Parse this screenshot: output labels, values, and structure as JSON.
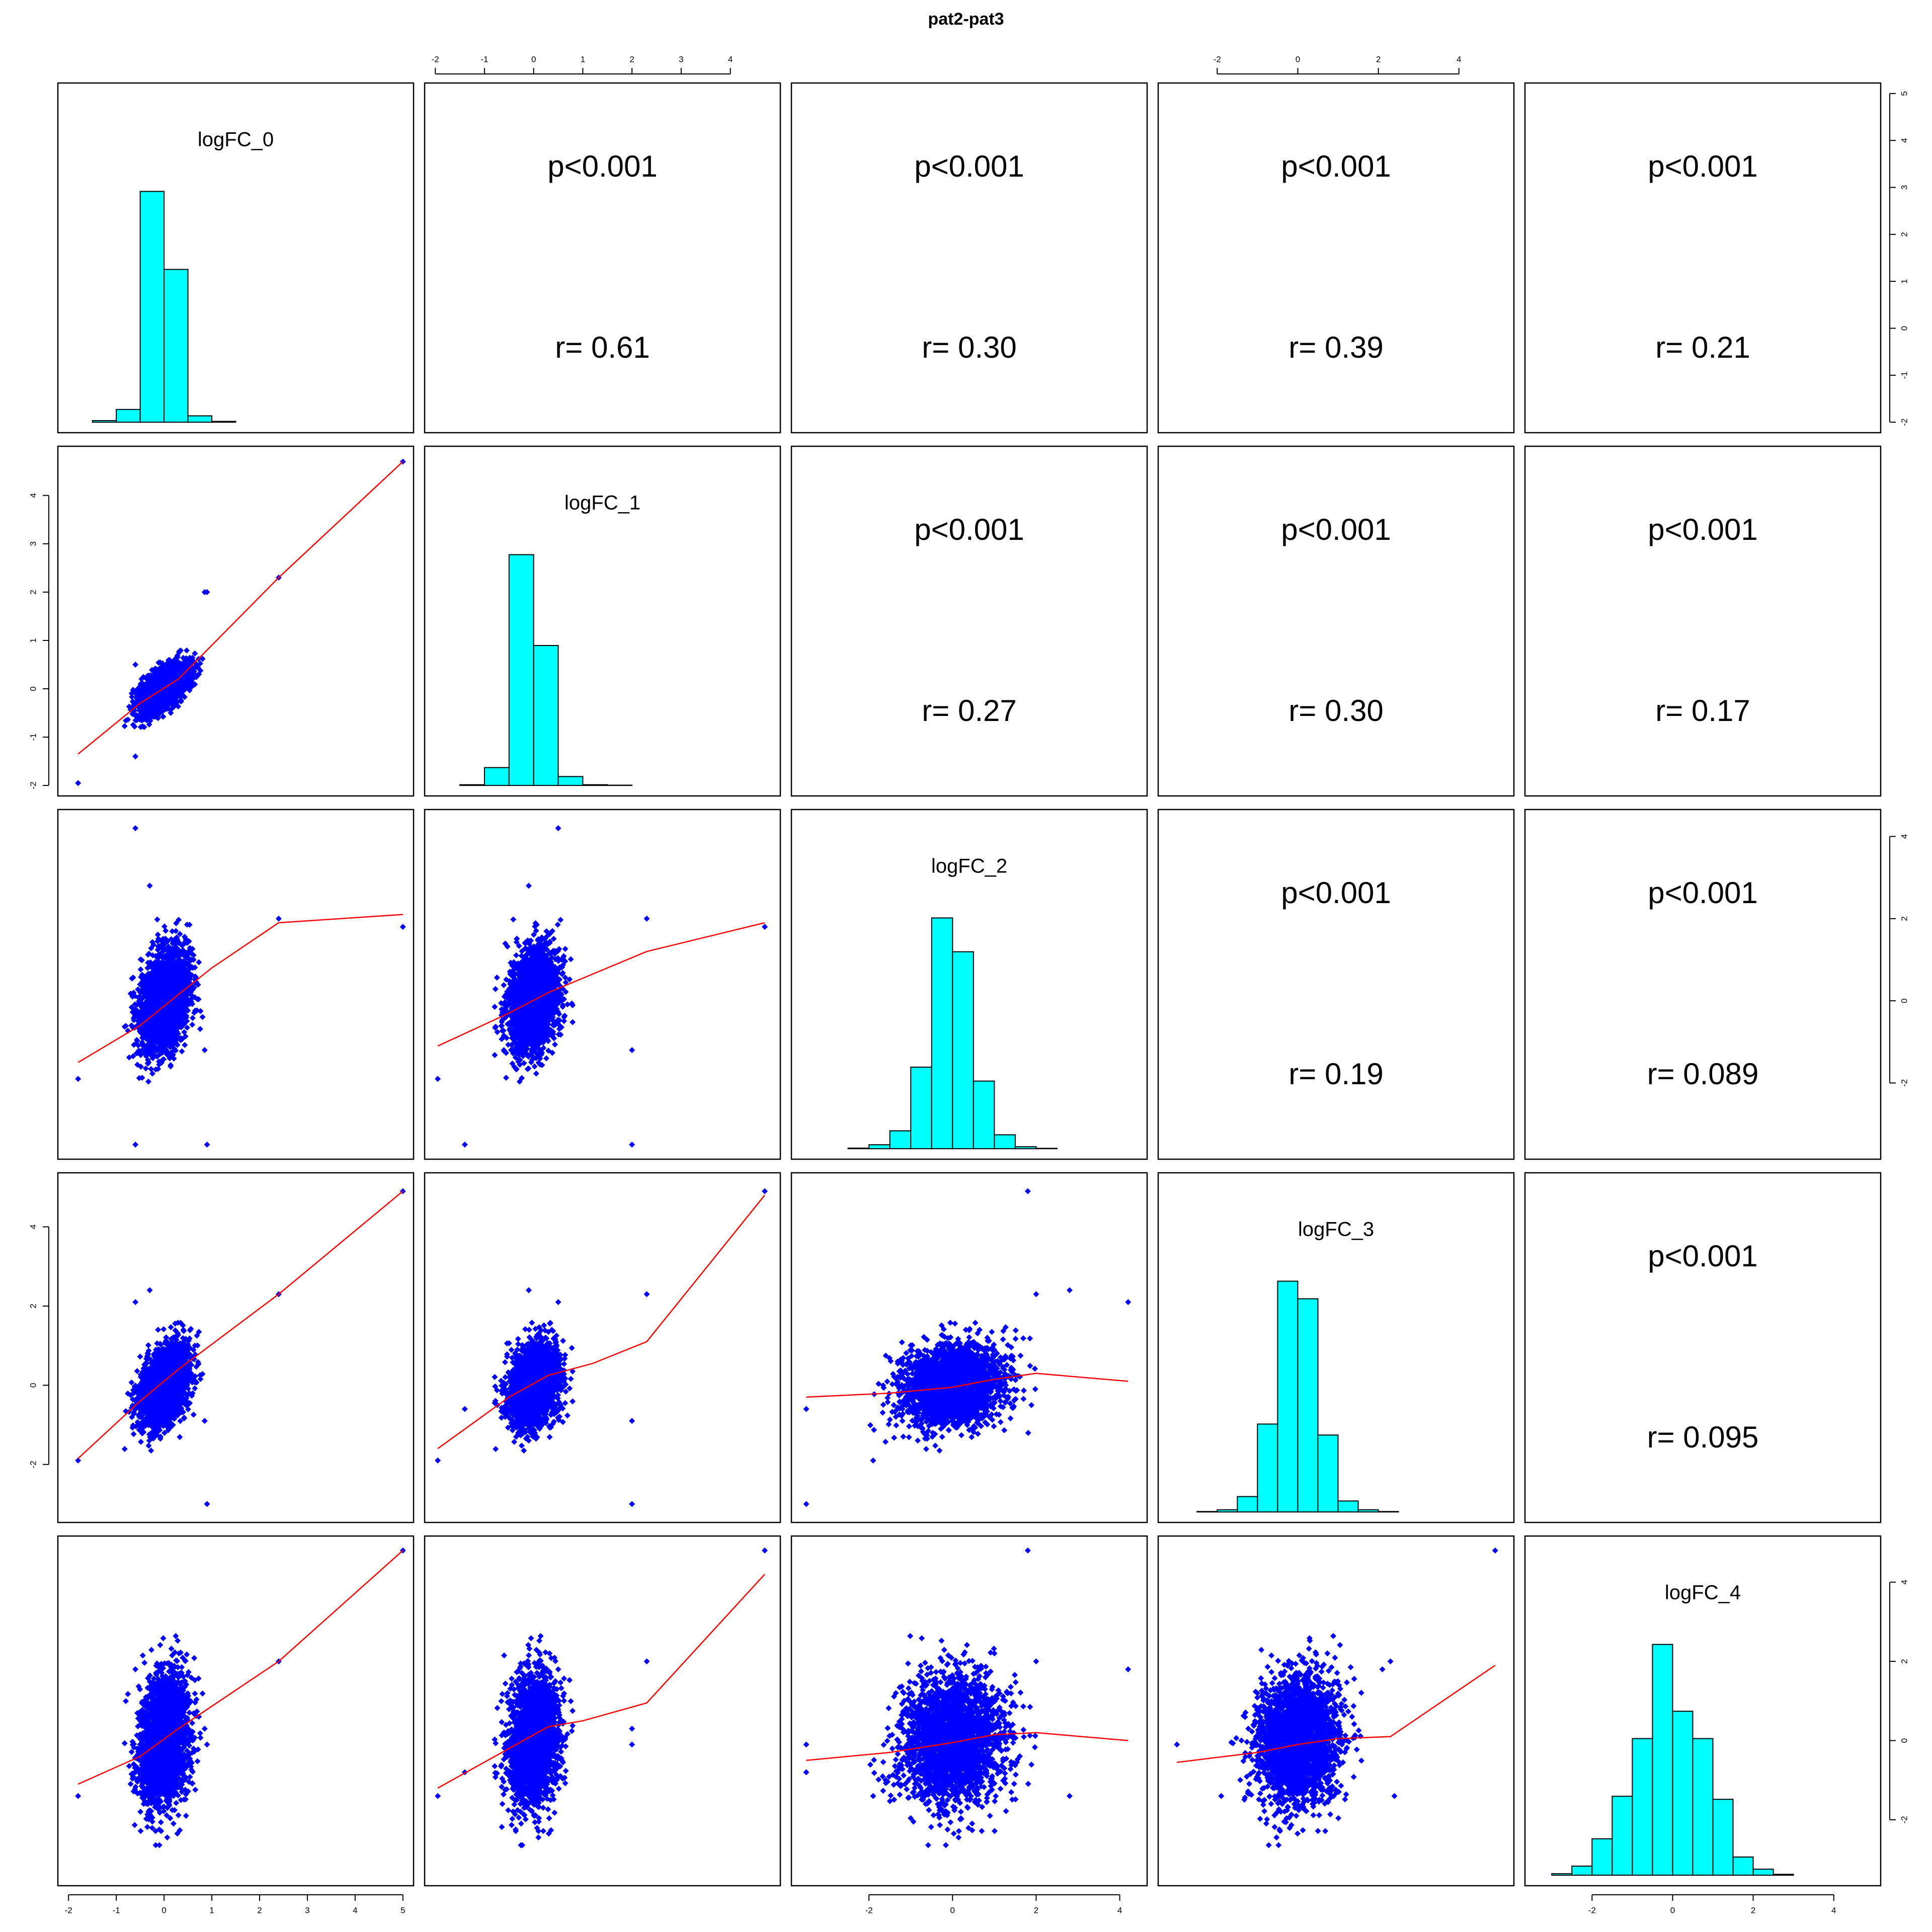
{
  "chart_data": {
    "type": "scatter",
    "kind": "pairs-matrix",
    "title": "pat2-pat3",
    "variables": [
      "logFC_0",
      "logFC_1",
      "logFC_2",
      "logFC_3",
      "logFC_4"
    ],
    "axes": [
      {
        "min": -2,
        "max": 5,
        "ticks": [
          -2,
          -1,
          0,
          1,
          2,
          3,
          4,
          5
        ],
        "sd": 0.25,
        "sample_min": -1.8,
        "sample_max": 5.0
      },
      {
        "min": -2,
        "max": 4.8,
        "ticks": [
          -2,
          -1,
          0,
          1,
          2,
          3,
          4
        ],
        "sd": 0.24,
        "sample_min": -1.95,
        "sample_max": 4.7
      },
      {
        "min": -3.6,
        "max": 4.4,
        "ticks": [
          -2,
          0,
          2,
          4
        ],
        "sd": 0.6,
        "sample_min": -3.5,
        "sample_max": 4.2
      },
      {
        "min": -3.2,
        "max": 5.1,
        "ticks": [
          -2,
          0,
          2,
          4
        ],
        "sd": 0.5,
        "sample_min": -3.0,
        "sample_max": 4.9
      },
      {
        "min": -3.4,
        "max": 4.9,
        "ticks": [
          -2,
          0,
          2,
          4
        ],
        "sd": 0.8,
        "sample_min": -3.0,
        "sample_max": 4.8
      }
    ],
    "correlations": [
      {
        "row": 0,
        "col": 1,
        "p": "p<0.001",
        "r": "r= 0.61"
      },
      {
        "row": 0,
        "col": 2,
        "p": "p<0.001",
        "r": "r= 0.30"
      },
      {
        "row": 0,
        "col": 3,
        "p": "p<0.001",
        "r": "r= 0.39"
      },
      {
        "row": 0,
        "col": 4,
        "p": "p<0.001",
        "r": "r= 0.21"
      },
      {
        "row": 1,
        "col": 2,
        "p": "p<0.001",
        "r": "r= 0.27"
      },
      {
        "row": 1,
        "col": 3,
        "p": "p<0.001",
        "r": "r= 0.30"
      },
      {
        "row": 1,
        "col": 4,
        "p": "p<0.001",
        "r": "r= 0.17"
      },
      {
        "row": 2,
        "col": 3,
        "p": "p<0.001",
        "r": "r= 0.19"
      },
      {
        "row": 2,
        "col": 4,
        "p": "p<0.001",
        "r": "r= 0.089"
      },
      {
        "row": 3,
        "col": 4,
        "p": "p<0.001",
        "r": "r= 0.095"
      }
    ],
    "histograms": [
      {
        "var": 0,
        "bin_edges": [
          -1.5,
          -1.0,
          -0.5,
          0,
          0.5,
          1.0,
          1.5
        ],
        "density": [
          0.01,
          0.08,
          1.45,
          0.96,
          0.04,
          0.005
        ]
      },
      {
        "var": 1,
        "bin_edges": [
          -1.5,
          -1.0,
          -0.5,
          0,
          0.5,
          1.0,
          1.5,
          2.0
        ],
        "density": [
          0.005,
          0.12,
          1.55,
          0.94,
          0.06,
          0.005,
          0.002
        ]
      },
      {
        "var": 2,
        "bin_edges": [
          -2.5,
          -2.0,
          -1.5,
          -1.0,
          -0.5,
          0,
          0.5,
          1.0,
          1.5,
          2.0,
          2.5
        ],
        "density": [
          0.003,
          0.02,
          0.09,
          0.41,
          1.16,
          0.99,
          0.34,
          0.07,
          0.01,
          0.002
        ]
      },
      {
        "var": 3,
        "bin_edges": [
          -2.5,
          -2.0,
          -1.5,
          -1.0,
          -0.5,
          0,
          0.5,
          1.0,
          1.5,
          2.0,
          2.5
        ],
        "density": [
          0.002,
          0.01,
          0.07,
          0.4,
          1.05,
          0.97,
          0.35,
          0.05,
          0.01,
          0.002
        ]
      },
      {
        "var": 4,
        "bin_edges": [
          -3.0,
          -2.5,
          -2.0,
          -1.5,
          -1.0,
          -0.5,
          0,
          0.5,
          1.0,
          1.5,
          2.0,
          2.5,
          3.0
        ],
        "density": [
          0.005,
          0.03,
          0.12,
          0.26,
          0.45,
          0.76,
          0.54,
          0.45,
          0.25,
          0.06,
          0.02,
          0.003
        ]
      }
    ],
    "outliers": [
      [
        5.0,
        4.7,
        1.8,
        4.9,
        4.8
      ],
      [
        2.4,
        2.3,
        2.0,
        2.3,
        2.0
      ],
      [
        0.85,
        2.0,
        -1.2,
        -0.9,
        0.3
      ],
      [
        -0.6,
        0.5,
        4.2,
        2.1,
        1.8
      ],
      [
        -0.3,
        -0.1,
        2.8,
        2.4,
        -1.4
      ],
      [
        -0.6,
        -1.4,
        -3.5,
        -0.6,
        -0.8
      ],
      [
        0.9,
        2.0,
        -3.5,
        -3.0,
        -0.1
      ],
      [
        -1.8,
        -1.95,
        -1.9,
        -1.9,
        -1.4
      ]
    ],
    "smoother": {
      "color": "#FF0000",
      "curves": [
        {
          "row": 1,
          "col": 0,
          "x": [
            -1.8,
            -0.5,
            0.3,
            2.4,
            5.0
          ],
          "y": [
            -1.35,
            -0.3,
            0.2,
            2.3,
            4.7
          ]
        },
        {
          "row": 2,
          "col": 0,
          "x": [
            -1.8,
            -0.5,
            0.3,
            1.0,
            2.4,
            5.0
          ],
          "y": [
            -1.5,
            -0.6,
            0.15,
            0.8,
            1.9,
            2.1
          ]
        },
        {
          "row": 2,
          "col": 1,
          "x": [
            -1.95,
            -0.5,
            0.3,
            2.3,
            4.7
          ],
          "y": [
            -1.1,
            -0.3,
            0.2,
            1.2,
            1.9
          ]
        },
        {
          "row": 3,
          "col": 0,
          "x": [
            -1.8,
            -0.5,
            0.3,
            2.4,
            5.0
          ],
          "y": [
            -1.85,
            -0.4,
            0.4,
            2.3,
            4.9
          ]
        },
        {
          "row": 3,
          "col": 1,
          "x": [
            -1.95,
            -0.5,
            0.3,
            1.2,
            2.3,
            4.7
          ],
          "y": [
            -1.6,
            -0.3,
            0.25,
            0.55,
            1.1,
            4.8
          ]
        },
        {
          "row": 3,
          "col": 2,
          "x": [
            -3.5,
            -1.5,
            0,
            1.0,
            2.0,
            4.2
          ],
          "y": [
            -0.3,
            -0.2,
            -0.05,
            0.15,
            0.3,
            0.1
          ]
        },
        {
          "row": 4,
          "col": 0,
          "x": [
            -1.8,
            -0.5,
            0.3,
            2.4,
            5.0
          ],
          "y": [
            -1.1,
            -0.4,
            0.3,
            2.0,
            4.8
          ]
        },
        {
          "row": 4,
          "col": 1,
          "x": [
            -1.95,
            -0.5,
            0.3,
            1.0,
            2.3,
            4.7
          ],
          "y": [
            -1.2,
            -0.2,
            0.35,
            0.5,
            0.95,
            4.2
          ]
        },
        {
          "row": 4,
          "col": 2,
          "x": [
            -3.5,
            -1.5,
            0,
            1.0,
            2.0,
            4.2
          ],
          "y": [
            -0.5,
            -0.3,
            -0.05,
            0.15,
            0.2,
            0.0
          ]
        },
        {
          "row": 4,
          "col": 3,
          "x": [
            -3.0,
            -1.0,
            0,
            1.0,
            2.3,
            4.9
          ],
          "y": [
            -0.55,
            -0.3,
            -0.1,
            0.05,
            0.1,
            1.9
          ]
        }
      ]
    },
    "point_color": "#0000FF",
    "hist_fill": "#00FFFF"
  }
}
